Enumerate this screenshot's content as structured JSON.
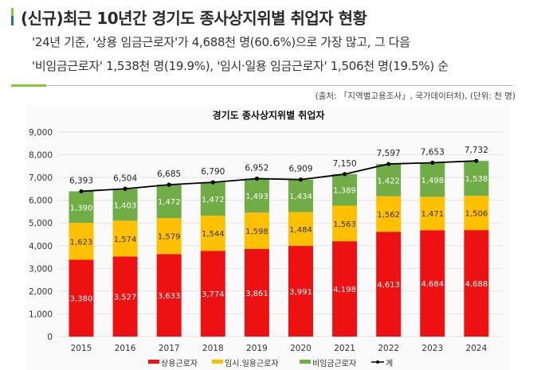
{
  "header": {
    "title": "(신규)최근 10년간 경기도 종사상지위별 취업자 현황",
    "summary_line1": "'24년 기준, '상용 임금근로자'가 4,688천 명(60.6%)으로 가장 많고, 그 다음",
    "summary_line2": "'비임금근로자' 1,538천 명(19.9%), '임시·일용 임금근로자' 1,506천 명(19.5%) 순",
    "source": "(출처: 「지역별고용조사」, 국가데이터처), (단위: 천 명)"
  },
  "chart_data": {
    "type": "bar",
    "stacked": true,
    "title": "경기도 종사상지위별 취업자",
    "categories": [
      "2015",
      "2016",
      "2017",
      "2018",
      "2019",
      "2020",
      "2021",
      "2022",
      "2023",
      "2024"
    ],
    "series": [
      {
        "name": "상용근로자",
        "color": "#ee1111",
        "values": [
          3380,
          3527,
          3633,
          3774,
          3861,
          3991,
          4198,
          4613,
          4684,
          4688
        ]
      },
      {
        "name": "임시.일용근로자",
        "color": "#ffc000",
        "values": [
          1623,
          1574,
          1579,
          1544,
          1598,
          1484,
          1563,
          1562,
          1471,
          1506
        ]
      },
      {
        "name": "비임금근로자",
        "color": "#70ad47",
        "values": [
          1390,
          1403,
          1472,
          1472,
          1493,
          1434,
          1389,
          1422,
          1498,
          1538
        ]
      }
    ],
    "total": {
      "name": "계",
      "type": "line",
      "color": "#000000",
      "values": [
        6393,
        6504,
        6685,
        6790,
        6952,
        6909,
        7150,
        7597,
        7653,
        7732
      ]
    },
    "ylim": [
      0,
      9000
    ],
    "yticks": [
      0,
      1000,
      2000,
      3000,
      4000,
      5000,
      6000,
      7000,
      8000,
      9000
    ],
    "grid": true,
    "legend": "bottom"
  }
}
